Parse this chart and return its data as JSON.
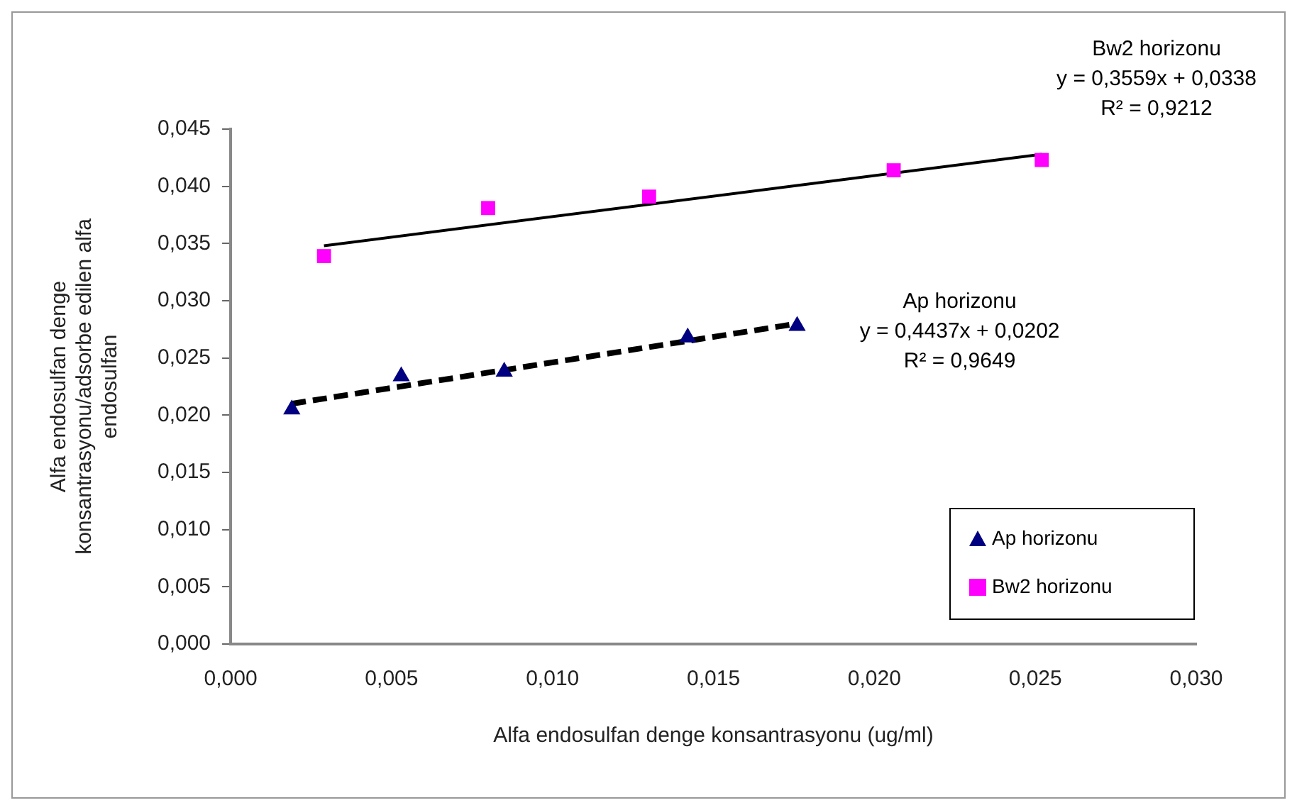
{
  "chart_data": {
    "type": "scatter",
    "xlabel": "Alfa endosulfan denge konsantrasyonu (ug/ml)",
    "ylabel": "Alfa endosulfan denge konsantrasyonu/adsorbe edilen alfa endosulfan",
    "xlim": [
      0,
      0.03
    ],
    "xticks": [
      {
        "value": 0,
        "label": "0,000"
      },
      {
        "value": 0.005,
        "label": "0,005"
      },
      {
        "value": 0.01,
        "label": "0,010"
      },
      {
        "value": 0.015,
        "label": "0,015"
      },
      {
        "value": 0.02,
        "label": "0,020"
      },
      {
        "value": 0.025,
        "label": "0,025"
      },
      {
        "value": 0.03,
        "label": "0,030"
      }
    ],
    "ylim": [
      0,
      0.045
    ],
    "yticks": [
      {
        "value": 0,
        "label": "0,000"
      },
      {
        "value": 0.005,
        "label": "0,005"
      },
      {
        "value": 0.01,
        "label": "0,010"
      },
      {
        "value": 0.015,
        "label": "0,015"
      },
      {
        "value": 0.02,
        "label": "0,020"
      },
      {
        "value": 0.025,
        "label": "0,025"
      },
      {
        "value": 0.03,
        "label": "0,030"
      },
      {
        "value": 0.035,
        "label": "0,035"
      },
      {
        "value": 0.04,
        "label": "0,040"
      },
      {
        "value": 0.045,
        "label": "0,045"
      }
    ],
    "grid": false,
    "legend": "bottom right",
    "series": [
      {
        "name": "Ap horizonu",
        "marker": "triangle",
        "color": "#000080",
        "x": [
          0.0019,
          0.0053,
          0.0085,
          0.0142,
          0.0176
        ],
        "values": [
          0.0205,
          0.0234,
          0.0238,
          0.0268,
          0.0278
        ]
      },
      {
        "name": "Bw2 horizonu",
        "marker": "square",
        "color": "#ff00ff",
        "x": [
          0.0029,
          0.008,
          0.013,
          0.0206,
          0.0252
        ],
        "values": [
          0.0339,
          0.0381,
          0.0391,
          0.0414,
          0.0423
        ]
      },
      {
        "type": "line",
        "marker": "none",
        "line_style": "dashed",
        "color": "#000000",
        "x": [
          0.0019,
          0.0176
        ],
        "values": [
          0.021,
          0.028
        ]
      },
      {
        "type": "line",
        "marker": "none",
        "line_style": "solid",
        "color": "#000000",
        "x": [
          0.0029,
          0.0252
        ],
        "values": [
          0.0348,
          0.0428
        ]
      }
    ],
    "annotations": [
      "Bw2 horizonu",
      "y = 0,3559x + 0,0338",
      "R² = 0,9212",
      "Ap horizonu",
      "y = 0,4437x + 0,0202",
      "R² = 0,9649"
    ]
  }
}
